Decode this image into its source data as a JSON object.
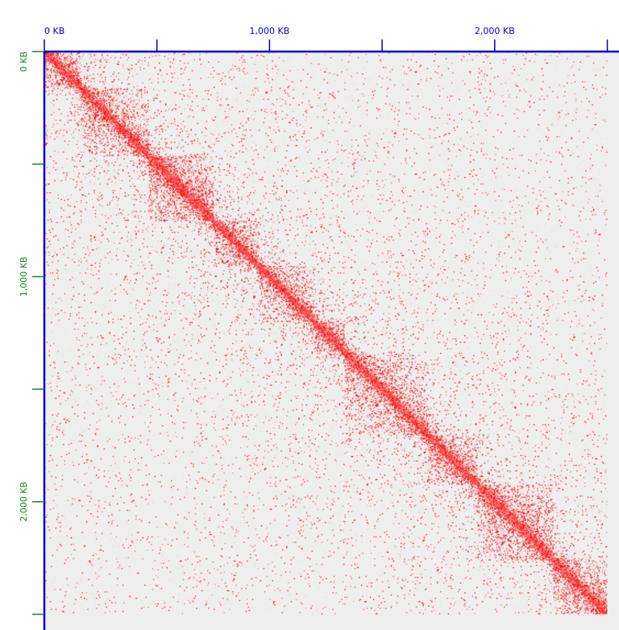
{
  "chart_data": {
    "type": "heatmap",
    "title": "",
    "xlabel": "",
    "ylabel": "",
    "unit": "KB",
    "x_axis": {
      "position": "top",
      "color": "#0000cc",
      "range_kb": [
        0,
        2500
      ],
      "major_ticks": [
        {
          "value": 0,
          "label": "0 KB"
        },
        {
          "value": 1000,
          "label": "1,000 KB"
        },
        {
          "value": 2000,
          "label": "2,000 KB"
        }
      ],
      "minor_ticks": [
        500,
        1500,
        2500
      ]
    },
    "y_axis": {
      "position": "left",
      "color": "#118811",
      "range_kb": [
        0,
        2500
      ],
      "major_ticks": [
        {
          "value": 0,
          "label": "0 KB"
        },
        {
          "value": 1000,
          "label": "1,000 KB"
        },
        {
          "value": 2000,
          "label": "2,000 KB"
        }
      ],
      "minor_ticks": [
        500,
        1500,
        2500
      ]
    },
    "colormap": {
      "low": "#eeeeee",
      "high": "#ff0000"
    },
    "domains_kb": [
      {
        "start": 0,
        "end": 160,
        "intensity": 0.55
      },
      {
        "start": 160,
        "end": 460,
        "intensity": 0.5
      },
      {
        "start": 460,
        "end": 750,
        "intensity": 0.75
      },
      {
        "start": 750,
        "end": 950,
        "intensity": 0.55
      },
      {
        "start": 950,
        "end": 1200,
        "intensity": 0.5
      },
      {
        "start": 1200,
        "end": 1330,
        "intensity": 0.7
      },
      {
        "start": 1330,
        "end": 1700,
        "intensity": 0.55
      },
      {
        "start": 1700,
        "end": 1920,
        "intensity": 0.6
      },
      {
        "start": 1920,
        "end": 2260,
        "intensity": 0.65
      },
      {
        "start": 2260,
        "end": 2500,
        "intensity": 0.6
      }
    ],
    "grid": false
  }
}
